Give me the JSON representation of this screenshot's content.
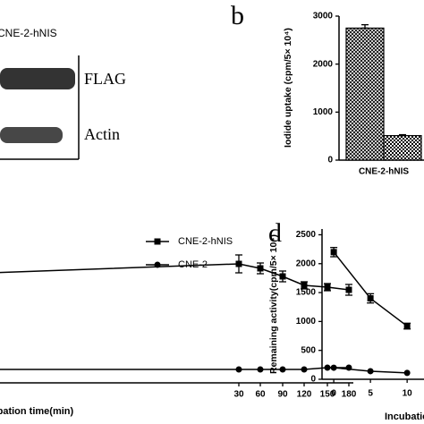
{
  "blot": {
    "header": "CNE-2-hNIS",
    "labels": [
      "FLAG",
      "Actin"
    ]
  },
  "chart_data": [
    {
      "type": "bar",
      "label": "b",
      "ylabel": "Iodide uptake (cpm/5× 10⁴)",
      "categories": [
        "CNE-2-hNIS"
      ],
      "series": [
        {
          "color": "#000000",
          "pattern": "crosshatch",
          "values": [
            2750
          ],
          "errors": [
            70
          ]
        },
        {
          "color": "#000000",
          "pattern": "checker",
          "values": [
            510
          ],
          "errors": [
            20
          ]
        }
      ],
      "ylim": [
        0,
        3000
      ],
      "yticks": [
        0,
        1000,
        2000,
        3000
      ]
    },
    {
      "type": "line",
      "xlabel": "Incubation time(min)",
      "categories": [
        null,
        "30",
        "60",
        "90",
        "120",
        "150",
        "180"
      ],
      "series": [
        {
          "name": "CNE-2-hNIS",
          "color": "#000000",
          "marker": "square",
          "values": [
            2300,
            2500,
            2400,
            2220,
            2020,
            1980,
            1920
          ],
          "errors": [
            null,
            200,
            120,
            120,
            80,
            80,
            120
          ]
        },
        {
          "name": "CNE-2",
          "color": "#000000",
          "marker": "circle",
          "values": [
            140,
            140,
            140,
            140,
            140,
            180,
            180
          ]
        }
      ]
    },
    {
      "type": "line",
      "label": "d",
      "ylabel": "Remaining activity(cpm/5× 10⁴)",
      "xlabel": "Incubation",
      "x": [
        0,
        5,
        10
      ],
      "series": [
        {
          "color": "#000000",
          "marker": "square",
          "values": [
            2200,
            1400,
            920
          ],
          "errors": [
            80,
            80,
            50
          ]
        },
        {
          "color": "#000000",
          "marker": "circle",
          "values": [
            200,
            140,
            110
          ]
        }
      ],
      "xlim": [
        -1.6,
        12.3
      ],
      "ylim": [
        0,
        2600
      ],
      "xticks": [
        0,
        5,
        10
      ],
      "yticks": [
        0,
        500,
        1000,
        1500,
        2000,
        2500
      ]
    }
  ]
}
